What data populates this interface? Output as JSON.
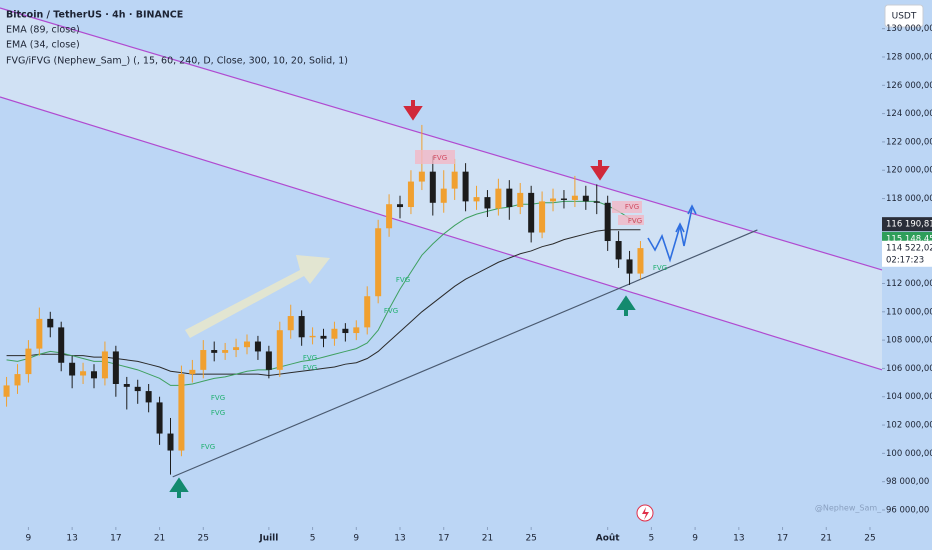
{
  "chart_data": {
    "type": "candlestick",
    "title": "Bitcoin / TetherUS · 4h · BINANCE",
    "indicator_labels": [
      "FVG/iFVG (Nephew_Sam_) (, 15, 60, 240, D, Close, 300, 10, 20, Solid, 1)"
    ],
    "currency_button": "USDT",
    "watermark": "@Nephew_Sam_",
    "fvg_labels": [
      "FVG",
      "FVG",
      "FVG",
      "FVG",
      "FVG",
      "FVG",
      "FVG",
      "FVG",
      "FVG",
      "FVG",
      "FVG"
    ],
    "x": [
      7,
      8,
      9,
      10,
      11,
      12,
      13,
      14,
      15,
      16,
      17,
      18,
      19,
      20,
      21,
      22,
      23,
      24,
      25,
      26,
      27,
      28,
      29,
      30,
      31,
      32,
      33,
      34,
      35,
      36,
      37,
      38,
      39,
      40,
      41,
      42,
      43,
      44,
      45,
      46,
      47,
      48,
      49,
      50,
      51,
      52,
      53,
      54,
      55,
      56,
      57,
      58,
      59,
      60,
      61,
      62,
      63,
      64,
      65
    ],
    "open": [
      104000,
      104800,
      105600,
      107400,
      109500,
      108900,
      106400,
      105500,
      105800,
      105300,
      107200,
      104900,
      104700,
      104400,
      103600,
      101400,
      100200,
      105600,
      105900,
      107300,
      107100,
      107300,
      107500,
      107900,
      107200,
      105900,
      108700,
      109700,
      108200,
      108300,
      108100,
      108800,
      108500,
      108900,
      111100,
      115900,
      117600,
      117400,
      119200,
      119900,
      117700,
      118700,
      119900,
      117800,
      118100,
      117300,
      118700,
      117400,
      118400,
      115600,
      117800,
      118000,
      117900,
      118200,
      117800,
      117700,
      115000,
      113700,
      112700
    ],
    "high": [
      105400,
      106300,
      108000,
      110300,
      110000,
      109300,
      106900,
      106400,
      106300,
      107900,
      107600,
      105400,
      105200,
      104900,
      104000,
      102500,
      106200,
      106600,
      108000,
      107900,
      107800,
      108100,
      108400,
      108300,
      107600,
      109300,
      110500,
      110100,
      108900,
      108800,
      109300,
      109200,
      109400,
      111800,
      116500,
      118300,
      118200,
      120000,
      123200,
      121000,
      120000,
      120800,
      120500,
      118900,
      118600,
      119400,
      119300,
      119100,
      118900,
      118500,
      118700,
      118600,
      119600,
      118900,
      119000,
      118200,
      115700,
      114300,
      115000
    ],
    "low": [
      103300,
      104200,
      105000,
      106900,
      108200,
      105800,
      104600,
      104900,
      104600,
      104800,
      104000,
      103100,
      103500,
      102900,
      100600,
      98500,
      99800,
      105000,
      105300,
      106500,
      106600,
      106800,
      107000,
      106600,
      105300,
      105400,
      108100,
      107600,
      107700,
      107500,
      107600,
      107900,
      108000,
      108400,
      110600,
      115300,
      116600,
      116900,
      118600,
      116800,
      117000,
      117900,
      117100,
      117200,
      116700,
      116800,
      116500,
      116900,
      114900,
      115200,
      117100,
      117300,
      117400,
      117200,
      116900,
      114300,
      113100,
      111900,
      112300
    ],
    "close": [
      104800,
      105600,
      107400,
      109500,
      108900,
      106400,
      105500,
      105800,
      105300,
      107200,
      104900,
      104700,
      104400,
      103600,
      101400,
      100200,
      105600,
      105900,
      107300,
      107100,
      107300,
      107500,
      107900,
      107200,
      105900,
      108700,
      109700,
      108200,
      108300,
      108100,
      108800,
      108500,
      108900,
      111100,
      115900,
      117600,
      117400,
      119200,
      119900,
      117700,
      118700,
      119900,
      117800,
      118100,
      117300,
      118700,
      117400,
      118400,
      115600,
      117800,
      118000,
      117900,
      118200,
      117800,
      117700,
      115000,
      113700,
      112700,
      114500
    ],
    "up_color": "#f0a030",
    "down_color": "#1c1c1c",
    "series": [
      {
        "name": "EMA (89, close)",
        "color": "#2b2b2b",
        "values": [
          106900,
          106900,
          106900,
          107000,
          107000,
          107000,
          106900,
          106900,
          106800,
          106800,
          106700,
          106600,
          106500,
          106300,
          106100,
          105800,
          105700,
          105600,
          105600,
          105600,
          105600,
          105600,
          105600,
          105600,
          105500,
          105600,
          105700,
          105800,
          105900,
          106000,
          106100,
          106300,
          106400,
          106700,
          107200,
          107900,
          108600,
          109300,
          110000,
          110600,
          111200,
          111800,
          112300,
          112700,
          113100,
          113500,
          113800,
          114100,
          114300,
          114600,
          114800,
          115100,
          115300,
          115500,
          115700,
          115800,
          115800,
          115800,
          115800
        ]
      },
      {
        "name": "EMA (34, close)",
        "color": "#3fa060",
        "values": [
          106600,
          106500,
          106700,
          107000,
          107200,
          107100,
          106900,
          106700,
          106500,
          106500,
          106300,
          106100,
          105900,
          105600,
          105300,
          104800,
          104800,
          104900,
          105100,
          105300,
          105400,
          105600,
          105800,
          105900,
          105900,
          106100,
          106300,
          106500,
          106600,
          106800,
          107000,
          107200,
          107400,
          107800,
          108700,
          110200,
          111600,
          112800,
          114000,
          114800,
          115500,
          116100,
          116600,
          116900,
          117100,
          117300,
          117400,
          117600,
          117600,
          117700,
          117700,
          117800,
          117800,
          117800,
          117800,
          117500,
          117100,
          116600,
          116200
        ]
      }
    ],
    "trendlines": [
      {
        "color": "#b04ad0",
        "x": [
          6.4,
          87.1
        ],
        "y": [
          131460,
          112960
        ]
      },
      {
        "color": "#b04ad0",
        "x": [
          6.4,
          87.1
        ],
        "y": [
          125175,
          105900
        ]
      },
      {
        "color": "#4a5a70",
        "x": [
          22.2,
          75.7
        ],
        "y": [
          98340,
          115780
        ]
      }
    ],
    "price_labels": [
      {
        "value": 116190.81,
        "label": "116 190,81",
        "color": "#2a2e39"
      },
      {
        "value": 115148.45,
        "label": "115 148,45",
        "color": "#2e9e5a"
      },
      {
        "value": 114522.02,
        "label": "114 522,02",
        "color": "#ffffff"
      }
    ],
    "countdown": "02:17:23",
    "xlim": [
      6.4,
      87.1
    ],
    "ylim": [
      94940,
      132025
    ],
    "xticks": [
      {
        "value": 9,
        "label": "9"
      },
      {
        "value": 13,
        "label": "13"
      },
      {
        "value": 17,
        "label": "17"
      },
      {
        "value": 21,
        "label": "21"
      },
      {
        "value": 25,
        "label": "25"
      },
      {
        "value": 31,
        "label": "Juill"
      },
      {
        "value": 35,
        "label": "5"
      },
      {
        "value": 39,
        "label": "9"
      },
      {
        "value": 43,
        "label": "13"
      },
      {
        "value": 47,
        "label": "17"
      },
      {
        "value": 51,
        "label": "21"
      },
      {
        "value": 55,
        "label": "25"
      },
      {
        "value": 62,
        "label": "Août"
      },
      {
        "value": 66,
        "label": "5"
      },
      {
        "value": 70,
        "label": "9"
      },
      {
        "value": 74,
        "label": "13"
      },
      {
        "value": 78,
        "label": "17"
      },
      {
        "value": 82,
        "label": "21"
      },
      {
        "value": 86,
        "label": "25"
      }
    ],
    "yticks": [
      {
        "value": 96000,
        "label": "96 000,00"
      },
      {
        "value": 98000,
        "label": "98 000,00"
      },
      {
        "value": 100000,
        "label": "100 000,00"
      },
      {
        "value": 102000,
        "label": "102 000,00"
      },
      {
        "value": 104000,
        "label": "104 000,00"
      },
      {
        "value": 106000,
        "label": "106 000,00"
      },
      {
        "value": 108000,
        "label": "108 000,00"
      },
      {
        "value": 110000,
        "label": "110 000,00"
      },
      {
        "value": 112000,
        "label": "112 000,00"
      },
      {
        "value": 114000,
        "label": "114 000,00"
      },
      {
        "value": 116000,
        "label": "116 000,00"
      },
      {
        "value": 118000,
        "label": "118 000,00"
      },
      {
        "value": 120000,
        "label": "120 000,00"
      },
      {
        "value": 122000,
        "label": "122 000,00"
      },
      {
        "value": 124000,
        "label": "124 000,00"
      },
      {
        "value": 126000,
        "label": "126 000,00"
      },
      {
        "value": 128000,
        "label": "128 000,00"
      },
      {
        "value": 130000,
        "label": "130 000,00"
      }
    ]
  }
}
